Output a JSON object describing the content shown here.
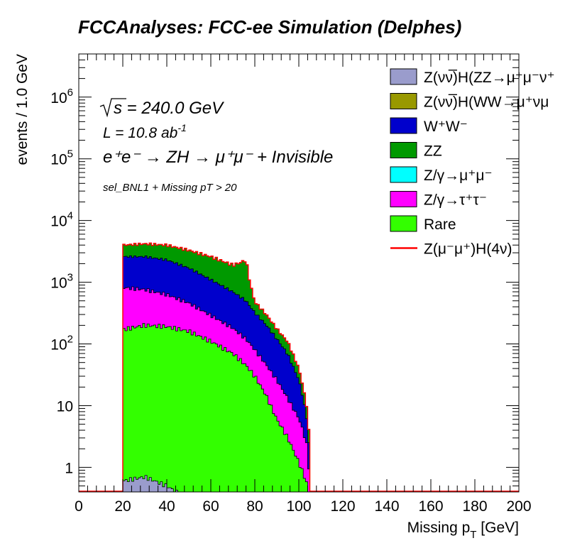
{
  "chart_data": {
    "type": "area",
    "title": "FCCAnalyses: FCC-ee Simulation (Delphes)",
    "xlabel": "Missing p",
    "xlabel_sub": "T",
    "xlabel_unit": "[GeV]",
    "ylabel": "events / 1.0 GeV",
    "xlim": [
      0,
      200
    ],
    "ylim_log": [
      0.4,
      5000000
    ],
    "yscale": "log",
    "x_ticks": [
      "0",
      "20",
      "40",
      "60",
      "80",
      "100",
      "120",
      "140",
      "160",
      "180",
      "200"
    ],
    "y_ticks": [
      {
        "value": 1,
        "label": "1"
      },
      {
        "value": 10,
        "label": "10"
      },
      {
        "value": 100,
        "label": "10",
        "exp": "2"
      },
      {
        "value": 1000,
        "label": "10",
        "exp": "3"
      },
      {
        "value": 10000,
        "label": "10",
        "exp": "4"
      },
      {
        "value": 100000,
        "label": "10",
        "exp": "5"
      },
      {
        "value": 1000000,
        "label": "10",
        "exp": "6"
      }
    ],
    "annotations": {
      "sqrt_s": "s",
      "energy": " = 240.0 GeV",
      "lumi_prefix": "L = 10.8 ab",
      "lumi_exp": "-1",
      "process": "e⁺e⁻ → ZH → μ⁺μ⁻ + Invisible",
      "selection": "sel_BNL1 + Missing pT > 20"
    },
    "x": [
      20,
      30,
      40,
      50,
      60,
      70,
      76,
      80,
      85,
      90,
      95,
      100,
      102,
      104,
      105
    ],
    "series": [
      {
        "name": "Z(νν̅)H(ZZ→μ⁺μ⁻ν⁺",
        "color": "#9a9ccc",
        "values": [
          0.6,
          0.7,
          0.5,
          0.3,
          0,
          0,
          0,
          0,
          0,
          0,
          0,
          0,
          0,
          0,
          0
        ]
      },
      {
        "name": "Z(νν̅)H(WW→μ⁺νμ",
        "color": "#999900",
        "values": [
          0,
          0,
          0,
          0,
          0,
          0,
          0,
          0,
          0,
          0,
          0,
          0,
          0,
          0,
          0
        ]
      },
      {
        "name": "Rare",
        "color": "#33ff00",
        "values": [
          170,
          200,
          190,
          160,
          110,
          70,
          45,
          30,
          15,
          6,
          3,
          1.2,
          0.8,
          0.5,
          0
        ]
      },
      {
        "name": "Z/γ→τ⁺τ⁻",
        "color": "#ff00ff",
        "values": [
          650,
          560,
          440,
          300,
          180,
          110,
          75,
          50,
          32,
          20,
          10,
          5,
          3,
          1.5,
          0
        ]
      },
      {
        "name": "Z/γ→μ⁺μ⁻",
        "color": "#00ffff",
        "values": [
          0,
          0,
          0,
          0,
          0,
          0,
          0,
          0,
          0,
          0,
          0,
          0,
          0,
          0,
          0
        ]
      },
      {
        "name": "W⁺W⁻",
        "color": "#0000cc",
        "values": [
          1780,
          1840,
          1670,
          1240,
          810,
          520,
          380,
          240,
          160,
          95,
          55,
          20,
          9,
          3,
          0
        ]
      },
      {
        "name": "ZZ",
        "color": "#009900",
        "values": [
          1400,
          1600,
          1700,
          1600,
          1500,
          1200,
          1800,
          160,
          100,
          55,
          40,
          14,
          7,
          3,
          0
        ]
      }
    ],
    "signal": {
      "name": "Z(μ⁻μ⁺)H(4ν)",
      "color": "#ff0000"
    },
    "legend": {
      "placement": "top-right",
      "entries": [
        {
          "label": "Z(νν̅)H(ZZ→μ⁺μ⁻ν⁺",
          "color": "#9a9ccc",
          "kind": "box"
        },
        {
          "label": "Z(νν̅)H(WW→μ⁺νμ",
          "color": "#999900",
          "kind": "box"
        },
        {
          "label": "W⁺W⁻",
          "color": "#0000cc",
          "kind": "box"
        },
        {
          "label": "ZZ",
          "color": "#009900",
          "kind": "box"
        },
        {
          "label": "Z/γ→μ⁺μ⁻",
          "color": "#00ffff",
          "kind": "box"
        },
        {
          "label": "Z/γ→τ⁺τ⁻",
          "color": "#ff00ff",
          "kind": "box"
        },
        {
          "label": "Rare",
          "color": "#33ff00",
          "kind": "box"
        },
        {
          "label": "Z(μ⁻μ⁺)H(4ν)",
          "color": "#ff0000",
          "kind": "line"
        }
      ]
    }
  }
}
